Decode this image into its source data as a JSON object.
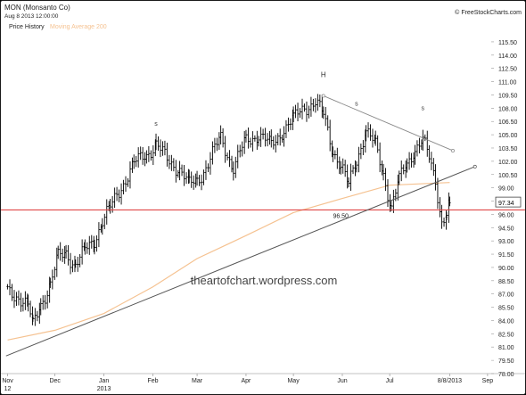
{
  "header": {
    "ticker": "MON (Monsanto Co)",
    "as_of": "Aug 8 2013 12:00:00",
    "legend_price": "Price History",
    "legend_ma": "Moving Average 200",
    "brand": "FreeStockCharts.com",
    "brand_icon": "copyright-icon"
  },
  "watermark": "theartofchart.wordpress.com",
  "colors": {
    "price": "#000000",
    "ma200": "#f5c291",
    "support": "#e04848",
    "trendline": "#555555",
    "neckline": "#888888"
  },
  "chart_data": {
    "type": "line",
    "title": "MON (Monsanto Co)",
    "ylim": [
      78,
      116.5
    ],
    "y_ticks": [
      "78.00",
      "79.50",
      "81.00",
      "82.50",
      "84.00",
      "85.50",
      "87.00",
      "88.50",
      "90.00",
      "91.50",
      "93.00",
      "94.50",
      "96.00",
      "97.50",
      "99.00",
      "100.50",
      "102.00",
      "103.50",
      "105.00",
      "106.50",
      "108.00",
      "109.50",
      "111.00",
      "112.50",
      "114.00",
      "115.50"
    ],
    "x_ticks": [
      {
        "label": "Nov",
        "sub": "12",
        "x": "2012-11-01"
      },
      {
        "label": "Dec",
        "sub": "",
        "x": "2012-12-01"
      },
      {
        "label": "Jan",
        "sub": "2013",
        "x": "2013-01-01"
      },
      {
        "label": "Feb",
        "sub": "",
        "x": "2013-02-01"
      },
      {
        "label": "Mar",
        "sub": "",
        "x": "2013-03-01"
      },
      {
        "label": "Apr",
        "sub": "",
        "x": "2013-04-01"
      },
      {
        "label": "May",
        "sub": "",
        "x": "2013-05-01"
      },
      {
        "label": "Jun",
        "sub": "",
        "x": "2013-06-01"
      },
      {
        "label": "Jul",
        "sub": "",
        "x": "2013-07-01"
      },
      {
        "label": "8/8/2013",
        "sub": "",
        "x": "2013-08-08"
      },
      {
        "label": "Sep",
        "sub": "",
        "x": "2013-09-01"
      }
    ],
    "last_price": "97.34",
    "series": [
      {
        "name": "Price History",
        "points": [
          [
            "2012-11-01",
            87.2
          ],
          [
            "2012-11-08",
            86.8
          ],
          [
            "2012-11-14",
            85.6
          ],
          [
            "2012-11-17",
            83.3
          ],
          [
            "2012-11-22",
            86.0
          ],
          [
            "2012-11-28",
            88.0
          ],
          [
            "2012-12-03",
            91.0
          ],
          [
            "2012-12-08",
            91.7
          ],
          [
            "2012-12-14",
            90.3
          ],
          [
            "2012-12-20",
            91.8
          ],
          [
            "2012-12-26",
            93.2
          ],
          [
            "2012-12-31",
            95.3
          ],
          [
            "2013-01-05",
            96.6
          ],
          [
            "2013-01-12",
            99.2
          ],
          [
            "2013-01-20",
            101.6
          ],
          [
            "2013-01-28",
            102.9
          ],
          [
            "2013-02-03",
            103.9
          ],
          [
            "2013-02-10",
            102.1
          ],
          [
            "2013-02-18",
            101.2
          ],
          [
            "2013-02-24",
            99.2
          ],
          [
            "2013-03-01",
            99.8
          ],
          [
            "2013-03-08",
            101.8
          ],
          [
            "2013-03-16",
            104.6
          ],
          [
            "2013-03-24",
            101.4
          ],
          [
            "2013-04-01",
            104.2
          ],
          [
            "2013-04-09",
            105.2
          ],
          [
            "2013-04-17",
            103.6
          ],
          [
            "2013-04-25",
            105.8
          ],
          [
            "2013-05-01",
            106.6
          ],
          [
            "2013-05-08",
            108.2
          ],
          [
            "2013-05-15",
            108.7
          ],
          [
            "2013-05-20",
            107.2
          ],
          [
            "2013-05-26",
            103.4
          ],
          [
            "2013-05-31",
            101.6
          ],
          [
            "2013-06-05",
            99.2
          ],
          [
            "2013-06-10",
            102.2
          ],
          [
            "2013-06-16",
            105.6
          ],
          [
            "2013-06-22",
            103.6
          ],
          [
            "2013-06-27",
            100.6
          ],
          [
            "2013-07-02",
            97.0
          ],
          [
            "2013-07-07",
            99.8
          ],
          [
            "2013-07-12",
            101.6
          ],
          [
            "2013-07-17",
            103.6
          ],
          [
            "2013-07-22",
            104.4
          ],
          [
            "2013-07-26",
            102.2
          ],
          [
            "2013-07-30",
            99.8
          ],
          [
            "2013-08-03",
            95.3
          ],
          [
            "2013-08-06",
            96.2
          ],
          [
            "2013-08-08",
            97.3
          ]
        ]
      },
      {
        "name": "Moving Average 200",
        "points": [
          [
            "2012-11-01",
            81.8
          ],
          [
            "2012-12-01",
            82.9
          ],
          [
            "2013-01-01",
            84.8
          ],
          [
            "2013-02-01",
            87.8
          ],
          [
            "2013-03-01",
            91.0
          ],
          [
            "2013-04-01",
            93.6
          ],
          [
            "2013-05-01",
            96.2
          ],
          [
            "2013-06-01",
            97.8
          ],
          [
            "2013-07-01",
            99.3
          ],
          [
            "2013-08-08",
            99.6
          ]
        ]
      }
    ],
    "support": {
      "y": 96.5,
      "label": "96.50"
    },
    "uptrend": {
      "from": [
        "2012-10-31",
        80.0
      ],
      "to": [
        "2013-08-24",
        101.4
      ]
    },
    "neckline": {
      "from": [
        "2013-05-20",
        109.4
      ],
      "to": [
        "2013-08-10",
        103.2
      ]
    },
    "annotations": [
      {
        "text": "H",
        "x": "2013-05-20",
        "y": 111.5
      },
      {
        "text": "s",
        "x": "2013-02-03",
        "y": 106.0
      },
      {
        "text": "s",
        "x": "2013-06-10",
        "y": 108.3
      },
      {
        "text": "s",
        "x": "2013-07-22",
        "y": 107.8
      }
    ]
  }
}
